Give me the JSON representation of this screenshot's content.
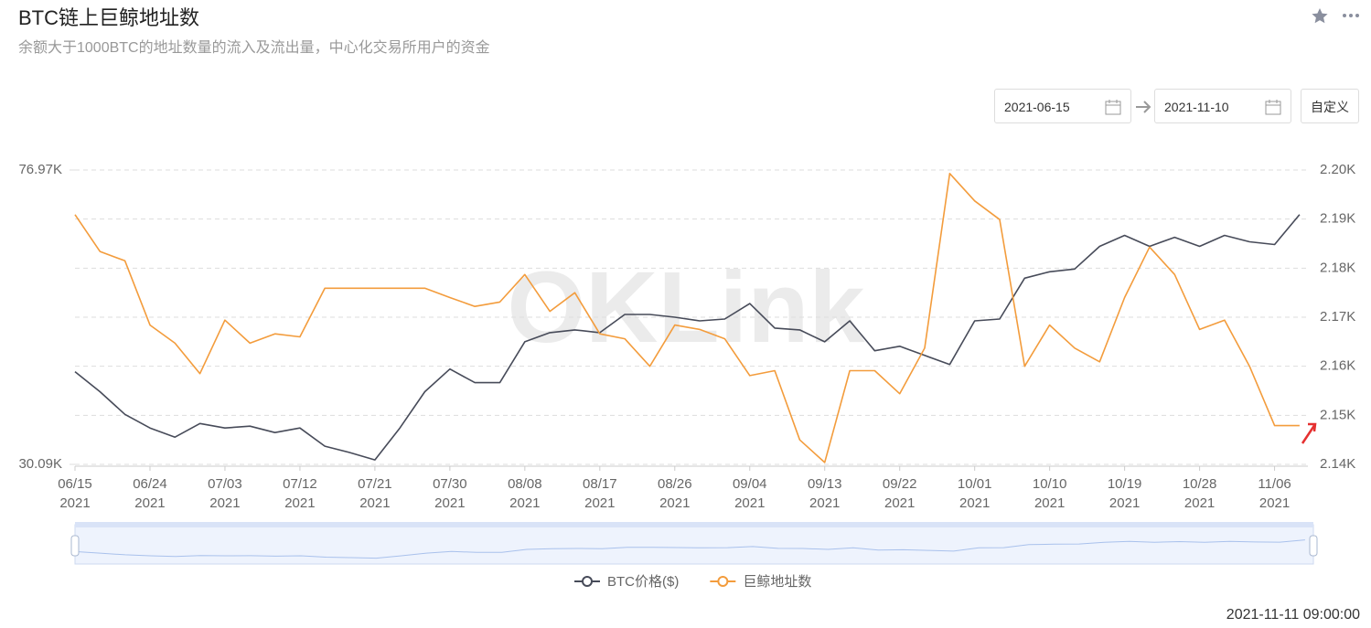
{
  "header": {
    "title": "BTC链上巨鲸地址数",
    "subtitle": "余额大于1000BTC的地址数量的流入及流出量，中心化交易所用户的资金"
  },
  "controls": {
    "start_date": "2021-06-15",
    "end_date": "2021-11-10",
    "custom": "自定义"
  },
  "chart_data": {
    "type": "line",
    "watermark": "OKLink",
    "x": [
      "2021-06-15",
      "2021-06-18",
      "2021-06-21",
      "2021-06-24",
      "2021-06-27",
      "2021-06-30",
      "2021-07-03",
      "2021-07-06",
      "2021-07-09",
      "2021-07-12",
      "2021-07-15",
      "2021-07-18",
      "2021-07-21",
      "2021-07-24",
      "2021-07-27",
      "2021-07-30",
      "2021-08-02",
      "2021-08-05",
      "2021-08-08",
      "2021-08-11",
      "2021-08-14",
      "2021-08-17",
      "2021-08-20",
      "2021-08-23",
      "2021-08-26",
      "2021-08-29",
      "2021-09-01",
      "2021-09-04",
      "2021-09-07",
      "2021-09-10",
      "2021-09-13",
      "2021-09-16",
      "2021-09-19",
      "2021-09-22",
      "2021-09-25",
      "2021-09-28",
      "2021-10-01",
      "2021-10-04",
      "2021-10-07",
      "2021-10-10",
      "2021-10-13",
      "2021-10-16",
      "2021-10-19",
      "2021-10-22",
      "2021-10-25",
      "2021-10-28",
      "2021-10-31",
      "2021-11-03",
      "2021-11-06",
      "2021-11-09"
    ],
    "xlim": [
      "2021-06-15",
      "2021-11-10"
    ],
    "xticks": [
      {
        "value": "2021-06-15",
        "label": [
          "06/15",
          "2021"
        ]
      },
      {
        "value": "2021-06-24",
        "label": [
          "06/24",
          "2021"
        ]
      },
      {
        "value": "2021-07-03",
        "label": [
          "07/03",
          "2021"
        ]
      },
      {
        "value": "2021-07-12",
        "label": [
          "07/12",
          "2021"
        ]
      },
      {
        "value": "2021-07-21",
        "label": [
          "07/21",
          "2021"
        ]
      },
      {
        "value": "2021-07-30",
        "label": [
          "07/30",
          "2021"
        ]
      },
      {
        "value": "2021-08-08",
        "label": [
          "08/08",
          "2021"
        ]
      },
      {
        "value": "2021-08-17",
        "label": [
          "08/17",
          "2021"
        ]
      },
      {
        "value": "2021-08-26",
        "label": [
          "08/26",
          "2021"
        ]
      },
      {
        "value": "2021-09-04",
        "label": [
          "09/04",
          "2021"
        ]
      },
      {
        "value": "2021-09-13",
        "label": [
          "09/13",
          "2021"
        ]
      },
      {
        "value": "2021-09-22",
        "label": [
          "09/22",
          "2021"
        ]
      },
      {
        "value": "2021-10-01",
        "label": [
          "10/01",
          "2021"
        ]
      },
      {
        "value": "2021-10-10",
        "label": [
          "10/10",
          "2021"
        ]
      },
      {
        "value": "2021-10-19",
        "label": [
          "10/19",
          "2021"
        ]
      },
      {
        "value": "2021-10-28",
        "label": [
          "10/28",
          "2021"
        ]
      },
      {
        "value": "2021-11-06",
        "label": [
          "11/06",
          "2021"
        ]
      }
    ],
    "ylim": [
      30090,
      76970
    ],
    "yticks": [
      {
        "value": 76970,
        "label": "76.97K"
      },
      {
        "value": 30090,
        "label": "30.09K"
      }
    ],
    "y2lim": [
      2140,
      2200
    ],
    "y2ticks": [
      {
        "value": 2200,
        "label": "2.20K"
      },
      {
        "value": 2190,
        "label": "2.19K"
      },
      {
        "value": 2180,
        "label": "2.18K"
      },
      {
        "value": 2170,
        "label": "2.17K"
      },
      {
        "value": 2160,
        "label": "2.16K"
      },
      {
        "value": 2150,
        "label": "2.15K"
      },
      {
        "value": 2140,
        "label": "2.14K"
      }
    ],
    "grid": true,
    "series": [
      {
        "name": "BTC价格($)",
        "color": "#474b59",
        "values": [
          44850,
          41670,
          38050,
          35880,
          34430,
          36600,
          35880,
          36170,
          35150,
          35880,
          32980,
          31970,
          30810,
          35880,
          41670,
          45280,
          43110,
          43110,
          49620,
          51070,
          51500,
          51070,
          53970,
          53970,
          53530,
          52950,
          53240,
          55700,
          51800,
          51500,
          49620,
          52950,
          48180,
          48900,
          47450,
          46000,
          52950,
          53240,
          59750,
          60770,
          61200,
          64820,
          66560,
          64820,
          66250,
          64820,
          66560,
          65540,
          65110,
          69880
        ]
      },
      {
        "name": "巨鲸地址数",
        "color": "#f39c3c",
        "axis": "y2",
        "values": [
          2190.9,
          2183.4,
          2181.5,
          2168.4,
          2164.7,
          2158.5,
          2169.4,
          2164.7,
          2166.6,
          2166.0,
          2175.9,
          2175.9,
          2175.9,
          2175.9,
          2175.9,
          2174.0,
          2172.2,
          2173.1,
          2178.7,
          2171.2,
          2175.0,
          2166.6,
          2165.6,
          2160.0,
          2168.4,
          2167.5,
          2165.6,
          2158.1,
          2159.1,
          2145.0,
          2140.4,
          2159.1,
          2159.1,
          2154.4,
          2163.7,
          2199.3,
          2193.7,
          2189.9,
          2160.0,
          2168.4,
          2163.7,
          2160.9,
          2174.0,
          2184.3,
          2178.7,
          2167.5,
          2169.4,
          2160.0,
          2147.9,
          2147.9
        ]
      }
    ]
  },
  "footer": {
    "timestamp": "2021-11-11 09:00:00"
  }
}
